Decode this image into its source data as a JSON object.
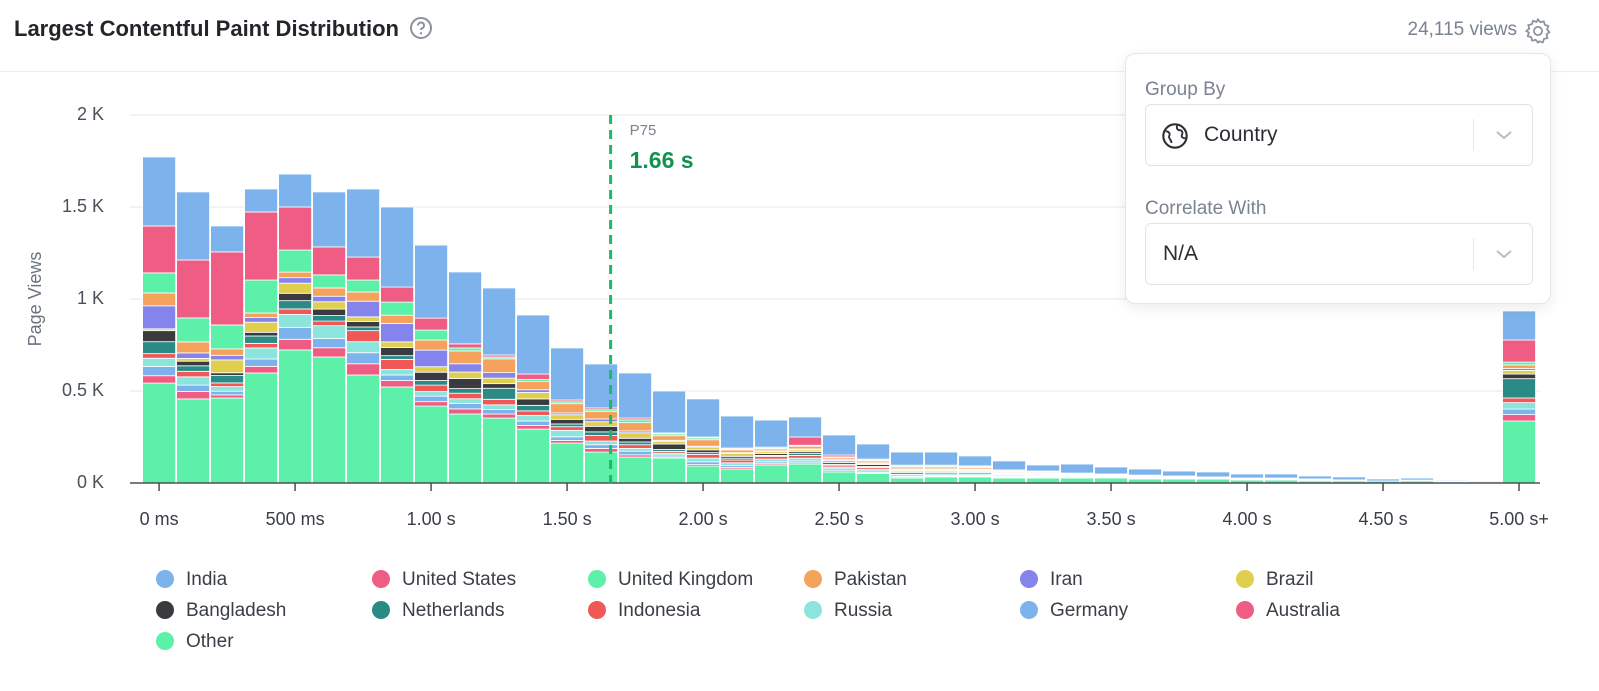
{
  "header": {
    "title": "Largest Contentful Paint Distribution",
    "views": "24,115 views"
  },
  "settings_panel": {
    "group_by_label": "Group By",
    "group_by_value": "Country",
    "correlate_label": "Correlate With",
    "correlate_value": "N/A"
  },
  "chart_data": {
    "type": "stacked_bar",
    "y_label": "Page Views",
    "x": [
      0,
      125,
      250,
      375,
      500,
      625,
      750,
      875,
      1000,
      1125,
      1250,
      1375,
      1500,
      1625,
      1750,
      1875,
      2000,
      2125,
      2250,
      2375,
      2500,
      2625,
      2750,
      2875,
      3000,
      3125,
      3250,
      3375,
      3500,
      3625,
      3750,
      3875,
      4000,
      4125,
      4250,
      4375,
      4500,
      4625,
      4750,
      4875,
      5000
    ],
    "xlim": [
      -107,
      5077
    ],
    "xticks": [
      {
        "value": 0,
        "label": "0 ms"
      },
      {
        "value": 500,
        "label": "500 ms"
      },
      {
        "value": 1000,
        "label": "1.00 s"
      },
      {
        "value": 1500,
        "label": "1.50 s"
      },
      {
        "value": 2000,
        "label": "2.00 s"
      },
      {
        "value": 2500,
        "label": "2.50 s"
      },
      {
        "value": 3000,
        "label": "3.00 s"
      },
      {
        "value": 3500,
        "label": "3.50 s"
      },
      {
        "value": 4000,
        "label": "4.00 s"
      },
      {
        "value": 4500,
        "label": "4.50 s"
      },
      {
        "value": 5000,
        "label": "5.00 s+"
      }
    ],
    "ylim": [
      0,
      2000
    ],
    "yticks": [
      {
        "value": 0,
        "label": "0 K"
      },
      {
        "value": 500,
        "label": "0.5 K"
      },
      {
        "value": 1000,
        "label": "1 K"
      },
      {
        "value": 1500,
        "label": "1.5 K"
      },
      {
        "value": 2000,
        "label": "2 K"
      }
    ],
    "grid": true,
    "p75": {
      "label": "P75",
      "value": 1660,
      "value_label": "1.66 s"
    },
    "series": [
      {
        "name": "India",
        "color": "#7db3ec",
        "values": [
          375,
          370,
          141,
          125,
          179,
          299,
          370,
          435,
          397,
          391,
          364,
          321,
          283,
          239,
          245,
          228,
          207,
          174,
          147,
          109,
          109,
          82,
          71,
          71,
          54,
          49,
          33,
          49,
          38,
          33,
          27,
          27,
          22,
          22,
          16,
          16,
          11,
          11,
          5,
          5,
          158
        ]
      },
      {
        "name": "United States",
        "color": "#f05d84",
        "values": [
          255,
          315,
          397,
          370,
          234,
          152,
          125,
          82,
          65,
          22,
          11,
          30,
          10,
          10,
          10,
          5,
          5,
          5,
          5,
          45,
          10,
          5,
          5,
          5,
          5,
          5,
          3,
          3,
          2,
          2,
          2,
          1,
          1,
          1,
          1,
          1,
          0,
          1,
          1,
          1,
          120
        ]
      },
      {
        "name": "United Kingdom",
        "color": "#5cf0a8",
        "values": [
          109,
          130,
          130,
          179,
          120,
          71,
          65,
          71,
          54,
          16,
          10,
          10,
          10,
          10,
          15,
          10,
          10,
          5,
          5,
          5,
          5,
          5,
          5,
          5,
          5,
          5,
          3,
          3,
          2,
          2,
          2,
          1,
          1,
          1,
          1,
          1,
          0,
          1,
          1,
          0,
          15
        ]
      },
      {
        "name": "Pakistan",
        "color": "#f5a25d",
        "values": [
          70,
          60,
          35,
          25,
          30,
          45,
          50,
          45,
          55,
          70,
          75,
          45,
          50,
          40,
          45,
          25,
          35,
          15,
          10,
          15,
          10,
          10,
          10,
          10,
          8,
          5,
          5,
          3,
          3,
          3,
          2,
          1,
          1,
          1,
          1,
          1,
          0,
          1,
          1,
          0,
          20
        ]
      },
      {
        "name": "Iran",
        "color": "#8484ec",
        "values": [
          125,
          30,
          25,
          25,
          30,
          30,
          85,
          100,
          90,
          45,
          30,
          15,
          10,
          15,
          10,
          5,
          5,
          5,
          5,
          5,
          5,
          5,
          5,
          5,
          4,
          3,
          3,
          2,
          2,
          2,
          1,
          1,
          1,
          1,
          1,
          0,
          0,
          0,
          0,
          0,
          10
        ]
      },
      {
        "name": "Brazil",
        "color": "#e0cf4f",
        "values": [
          10,
          15,
          70,
          55,
          55,
          40,
          25,
          30,
          30,
          35,
          30,
          35,
          25,
          25,
          30,
          15,
          15,
          15,
          10,
          10,
          10,
          5,
          5,
          5,
          5,
          3,
          3,
          2,
          2,
          2,
          1,
          1,
          1,
          1,
          1,
          1,
          0,
          1,
          0,
          0,
          20
        ]
      },
      {
        "name": "Bangladesh",
        "color": "#3a3a3f",
        "values": [
          60,
          25,
          15,
          20,
          40,
          35,
          30,
          45,
          45,
          55,
          25,
          35,
          25,
          30,
          20,
          30,
          15,
          10,
          10,
          10,
          10,
          10,
          5,
          5,
          5,
          4,
          4,
          3,
          2,
          2,
          2,
          1,
          1,
          1,
          1,
          0,
          0,
          0,
          1,
          0,
          25
        ]
      },
      {
        "name": "Netherlands",
        "color": "#2a8a86",
        "values": [
          65,
          30,
          40,
          40,
          45,
          30,
          20,
          20,
          25,
          25,
          60,
          30,
          15,
          20,
          15,
          10,
          10,
          10,
          5,
          10,
          5,
          5,
          5,
          5,
          5,
          3,
          3,
          2,
          2,
          2,
          1,
          1,
          1,
          1,
          1,
          1,
          0,
          0,
          0,
          0,
          105
        ]
      },
      {
        "name": "Indonesia",
        "color": "#f05757",
        "values": [
          25,
          30,
          20,
          25,
          30,
          25,
          60,
          55,
          35,
          30,
          30,
          25,
          20,
          30,
          20,
          10,
          20,
          15,
          15,
          15,
          10,
          10,
          10,
          8,
          8,
          5,
          5,
          3,
          3,
          2,
          2,
          1,
          1,
          1,
          1,
          0,
          0,
          0,
          1,
          0,
          25
        ]
      },
      {
        "name": "Russia",
        "color": "#8be5dc",
        "values": [
          45,
          45,
          25,
          60,
          70,
          70,
          60,
          30,
          25,
          25,
          25,
          30,
          35,
          20,
          15,
          10,
          20,
          15,
          15,
          15,
          10,
          10,
          10,
          8,
          7,
          5,
          4,
          3,
          2,
          2,
          1,
          1,
          1,
          1,
          1,
          1,
          0,
          1,
          1,
          0,
          35
        ]
      },
      {
        "name": "Germany",
        "color": "#7db3ec",
        "values": [
          50,
          35,
          20,
          40,
          65,
          50,
          60,
          30,
          30,
          30,
          25,
          25,
          20,
          20,
          20,
          10,
          15,
          10,
          10,
          10,
          10,
          8,
          5,
          4,
          4,
          3,
          3,
          2,
          1,
          1,
          1,
          1,
          1,
          1,
          1,
          0,
          0,
          0,
          0,
          0,
          30
        ]
      },
      {
        "name": "Australia",
        "color": "#f05d84",
        "values": [
          40,
          40,
          17,
          36,
          58,
          50,
          61,
          35,
          24,
          28,
          22,
          19,
          14,
          20,
          12,
          6,
          8,
          9,
          7,
          7,
          7,
          5,
          5,
          4,
          4,
          3,
          2,
          1,
          1,
          1,
          1,
          1,
          1,
          1,
          1,
          0,
          0,
          0,
          0,
          0,
          35
        ]
      },
      {
        "name": "Other",
        "color": "#5cf0a8",
        "values": [
          543,
          457,
          462,
          598,
          723,
          685,
          587,
          522,
          418,
          375,
          353,
          293,
          217,
          168,
          141,
          136,
          92,
          76,
          98,
          103,
          60,
          52,
          27,
          33,
          33,
          27,
          27,
          27,
          27,
          22,
          22,
          22,
          16,
          16,
          11,
          11,
          11,
          11,
          5,
          5,
          337
        ]
      }
    ]
  }
}
